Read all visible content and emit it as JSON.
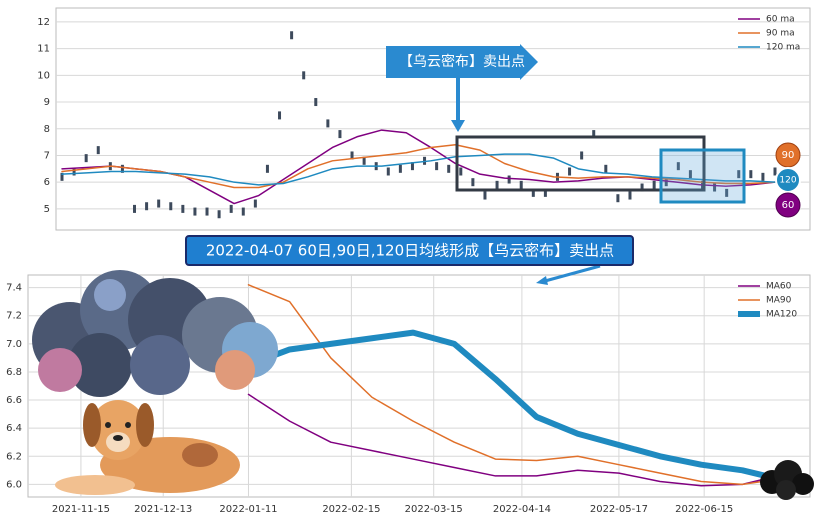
{
  "chart_data": [
    {
      "type": "line",
      "annotation": "【乌云密布】卖出点",
      "badges": [
        "90",
        "120",
        "60"
      ],
      "banner": "2022-04-07 60日,90日,120日均线形成【乌云密布】卖出点",
      "ylim": [
        4.21,
        12.52
      ],
      "yticks": [
        5,
        6,
        7,
        8,
        9,
        10,
        11,
        12
      ],
      "grid": true,
      "legend": "upper right",
      "price": {
        "color": "#3d4a5c",
        "values": [
          6.2,
          6.4,
          6.9,
          7.2,
          6.6,
          6.5,
          5.0,
          5.1,
          5.2,
          5.1,
          5.0,
          4.9,
          4.9,
          4.8,
          5.0,
          4.9,
          5.2,
          6.5,
          8.5,
          11.5,
          10.0,
          9.0,
          8.2,
          7.8,
          7.0,
          6.8,
          6.6,
          6.4,
          6.5,
          6.6,
          6.8,
          6.6,
          6.5,
          6.4,
          6.0,
          5.5,
          5.9,
          6.1,
          5.9,
          5.6,
          5.6,
          6.2,
          6.4,
          7.0,
          7.8,
          6.5,
          5.4,
          5.5,
          5.8,
          5.9,
          6.0,
          6.6,
          6.3,
          5.9,
          5.8,
          5.6,
          6.3,
          6.3,
          6.2,
          6.4
        ]
      },
      "series": [
        {
          "name": "60 ma",
          "color": "#800080",
          "values": [
            6.5,
            6.55,
            6.6,
            6.5,
            6.4,
            6.2,
            5.7,
            5.2,
            5.5,
            6.1,
            6.7,
            7.3,
            7.7,
            7.95,
            7.85,
            7.3,
            6.7,
            6.3,
            6.15,
            6.1,
            6.0,
            6.05,
            6.15,
            6.2,
            6.1,
            6.0,
            5.9,
            5.85,
            5.9,
            6.0
          ]
        },
        {
          "name": "90 ma",
          "color": "#e0702a",
          "values": [
            6.4,
            6.5,
            6.6,
            6.5,
            6.4,
            6.2,
            6.0,
            5.8,
            5.8,
            6.0,
            6.5,
            6.8,
            6.9,
            7.0,
            7.1,
            7.3,
            7.4,
            7.2,
            6.7,
            6.4,
            6.2,
            6.15,
            6.2,
            6.2,
            6.15,
            6.1,
            6.0,
            5.95,
            5.95,
            6.0
          ]
        },
        {
          "name": "120 ma",
          "color": "#1f8ac0",
          "values": [
            6.3,
            6.35,
            6.4,
            6.4,
            6.35,
            6.3,
            6.2,
            6.0,
            5.9,
            5.95,
            6.2,
            6.5,
            6.6,
            6.6,
            6.7,
            6.8,
            6.95,
            7.0,
            7.05,
            7.05,
            6.9,
            6.5,
            6.35,
            6.3,
            6.2,
            6.15,
            6.1,
            6.05,
            6.05,
            6.0
          ]
        }
      ]
    },
    {
      "type": "line",
      "x": [
        "2022-01-11",
        "2022-01-25",
        "2022-02-08",
        "2022-02-22",
        "2022-03-08",
        "2022-03-22",
        "2022-04-05",
        "2022-04-19",
        "2022-05-03",
        "2022-05-17",
        "2022-05-31",
        "2022-06-14",
        "2022-06-28",
        "2022-07-08"
      ],
      "xlim": [
        "2021-10-28",
        "2022-07-21"
      ],
      "xticks": [
        "2021-11-15",
        "2021-12-13",
        "2022-01-11",
        "2022-02-15",
        "2022-03-15",
        "2022-04-14",
        "2022-05-17",
        "2022-06-15"
      ],
      "ylim": [
        5.91,
        7.49
      ],
      "yticks": [
        {
          "value": 6,
          "label": "6.0"
        },
        6.2,
        6.4,
        6.6,
        6.8,
        {
          "value": 7,
          "label": "7.0"
        },
        7.2,
        7.4
      ],
      "grid": true,
      "legend": "upper right",
      "series": [
        {
          "name": "MA60",
          "color": "#800080",
          "width": 1.5,
          "values": [
            6.64,
            6.45,
            6.3,
            6.24,
            6.18,
            6.12,
            6.06,
            6.06,
            6.1,
            6.08,
            6.02,
            5.99,
            6.0,
            6.05
          ]
        },
        {
          "name": "MA90",
          "color": "#e0702a",
          "width": 1.5,
          "values": [
            7.42,
            7.3,
            6.9,
            6.62,
            6.45,
            6.3,
            6.18,
            6.17,
            6.2,
            6.14,
            6.08,
            6.02,
            6.0,
            6.03
          ]
        },
        {
          "name": "MA120",
          "color": "#1f8ac0",
          "width": 6,
          "values": [
            6.85,
            6.96,
            7.0,
            7.04,
            7.08,
            7.0,
            6.75,
            6.48,
            6.36,
            6.28,
            6.2,
            6.14,
            6.1,
            6.05
          ]
        }
      ]
    }
  ]
}
